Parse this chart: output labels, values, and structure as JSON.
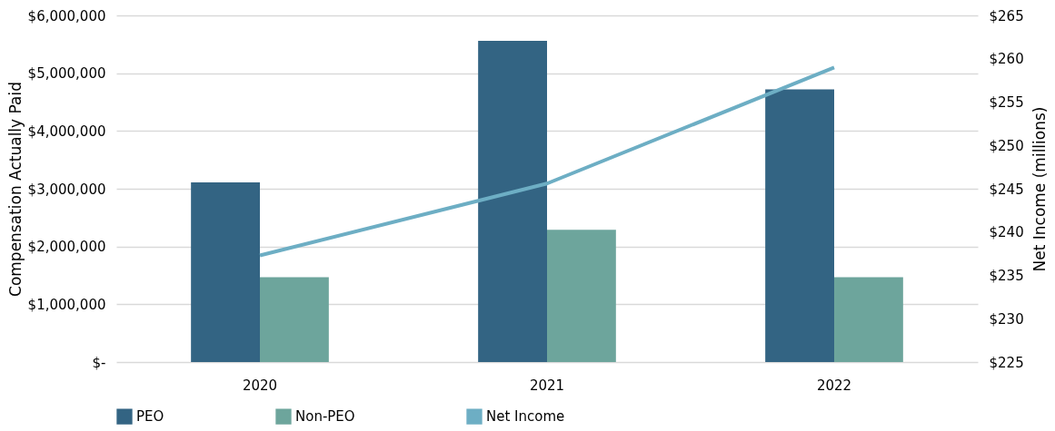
{
  "chart_data": {
    "type": "bar",
    "categories": [
      "2020",
      "2021",
      "2022"
    ],
    "ylabel": "Compensation Actually Paid",
    "y2label": "Net Income (millions)",
    "series": [
      {
        "name": "PEO",
        "color": "#336483",
        "values": [
          3110000,
          5560000,
          4720000
        ]
      },
      {
        "name": "Non-PEO",
        "color": "#6da59c",
        "values": [
          1470000,
          2290000,
          1470000
        ]
      },
      {
        "name": "Net Income",
        "type": "line",
        "axis": "y2",
        "color": "#6daec4",
        "values": [
          237.3,
          245.6,
          259.0
        ]
      }
    ],
    "ylim": [
      0,
      6000000
    ],
    "yticks": [
      {
        "value": 0,
        "label": "$-"
      },
      {
        "value": 1000000,
        "label": "$1,000,000"
      },
      {
        "value": 2000000,
        "label": "$2,000,000"
      },
      {
        "value": 3000000,
        "label": "$3,000,000"
      },
      {
        "value": 4000000,
        "label": "$4,000,000"
      },
      {
        "value": 5000000,
        "label": "$5,000,000"
      },
      {
        "value": 6000000,
        "label": "$6,000,000"
      }
    ],
    "y2lim": [
      225,
      265
    ],
    "y2ticks": [
      {
        "value": 225,
        "label": "$225"
      },
      {
        "value": 230,
        "label": "$230"
      },
      {
        "value": 235,
        "label": "$235"
      },
      {
        "value": 240,
        "label": "$240"
      },
      {
        "value": 245,
        "label": "$245"
      },
      {
        "value": 250,
        "label": "$250"
      },
      {
        "value": 255,
        "label": "$255"
      },
      {
        "value": 260,
        "label": "$260"
      },
      {
        "value": 265,
        "label": "$265"
      }
    ],
    "grid": "y",
    "legend": "bottom"
  }
}
